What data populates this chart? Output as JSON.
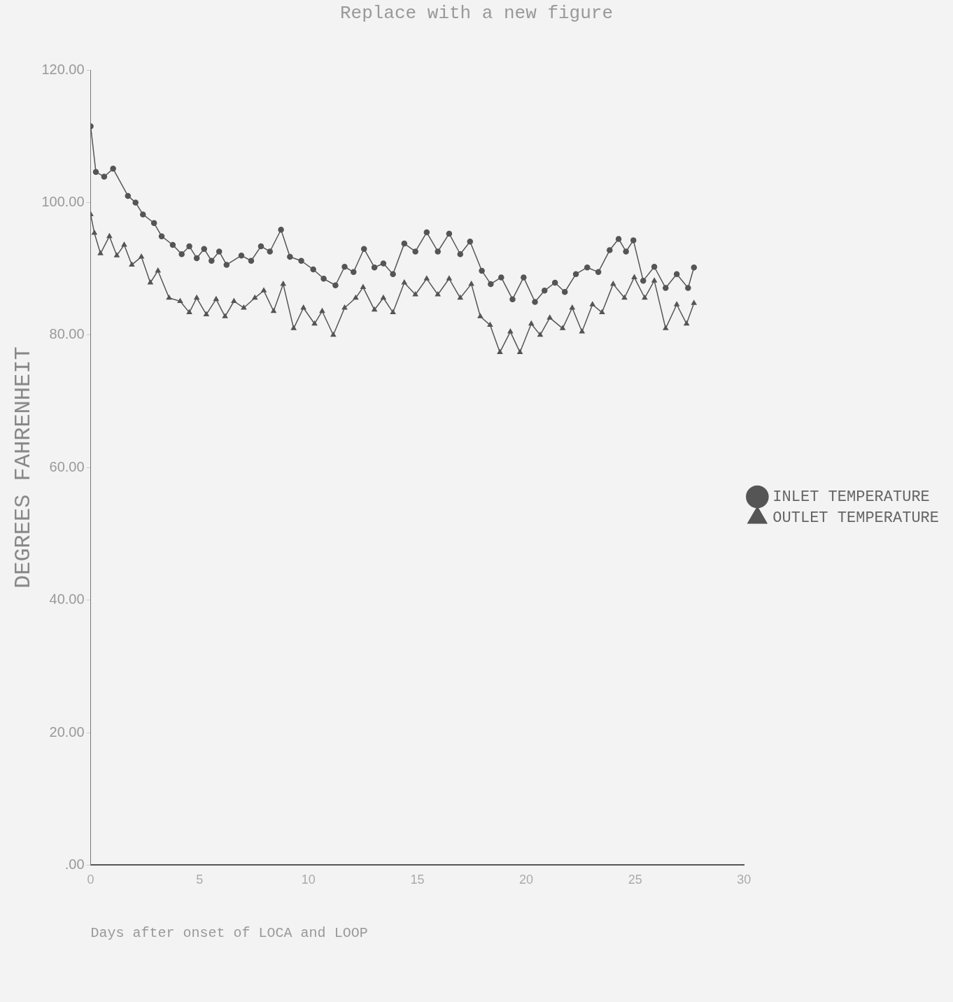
{
  "chart_data": {
    "type": "line",
    "title": "Replace with a new figure",
    "xlabel": "Days after onset of LOCA and LOOP",
    "ylabel": "DEGREES FAHRENHEIT",
    "xlim": [
      0,
      30
    ],
    "xticks": [
      0,
      5,
      10,
      15,
      20,
      25,
      30
    ],
    "ylim": [
      0,
      120
    ],
    "yticks": [
      {
        "value": 0,
        "label": ".00"
      },
      {
        "value": 20,
        "label": "20.00"
      },
      {
        "value": 40,
        "label": "40.00"
      },
      {
        "value": 60,
        "label": "60.00"
      },
      {
        "value": 80,
        "label": "80.00"
      },
      {
        "value": 100,
        "label": "100.00"
      },
      {
        "value": 120,
        "label": "120.00"
      }
    ],
    "grid": false,
    "legend": "right",
    "line_style": "solid",
    "series": [
      {
        "name": "INLET TEMPERATURE",
        "color": "#555555",
        "marker": "circle",
        "x": [
          0,
          0.24,
          0.62,
          1.03,
          1.71,
          2.06,
          2.4,
          2.91,
          3.26,
          3.77,
          4.18,
          4.53,
          4.87,
          5.21,
          5.55,
          5.9,
          6.24,
          6.92,
          7.37,
          7.82,
          8.23,
          8.74,
          9.15,
          9.67,
          10.22,
          10.7,
          11.24,
          11.66,
          12.07,
          12.55,
          13.03,
          13.44,
          13.88,
          14.4,
          14.91,
          15.43,
          15.94,
          16.46,
          16.97,
          17.42,
          17.96,
          18.37,
          18.85,
          19.37,
          19.88,
          20.4,
          20.84,
          21.32,
          21.77,
          22.28,
          22.8,
          23.31,
          23.83,
          24.24,
          24.58,
          24.92,
          25.37,
          25.88,
          26.4,
          26.91,
          27.43,
          27.7
        ],
        "values": [
          111.5,
          104.6,
          103.9,
          105.1,
          101.0,
          100.0,
          98.2,
          96.9,
          94.9,
          93.6,
          92.2,
          93.4,
          91.6,
          93.0,
          91.2,
          92.6,
          90.6,
          92.0,
          91.2,
          93.4,
          92.6,
          95.9,
          91.8,
          91.2,
          89.9,
          88.5,
          87.5,
          90.3,
          89.5,
          93.0,
          90.2,
          90.8,
          89.2,
          93.8,
          92.6,
          95.5,
          92.6,
          95.3,
          92.2,
          94.1,
          89.7,
          87.7,
          88.7,
          85.4,
          88.7,
          85.0,
          86.7,
          87.9,
          86.5,
          89.2,
          90.2,
          89.5,
          92.8,
          94.5,
          92.6,
          94.3,
          88.2,
          90.3,
          87.1,
          89.2,
          87.1,
          90.2
        ]
      },
      {
        "name": "OUTLET TEMPERATURE",
        "color": "#555555",
        "marker": "triangle",
        "x": [
          0,
          0.17,
          0.45,
          0.86,
          1.2,
          1.54,
          1.89,
          2.33,
          2.74,
          3.09,
          3.6,
          4.11,
          4.53,
          4.87,
          5.31,
          5.76,
          6.17,
          6.58,
          7.03,
          7.54,
          7.95,
          8.4,
          8.84,
          9.32,
          9.77,
          10.28,
          10.63,
          11.14,
          11.66,
          12.17,
          12.51,
          13.03,
          13.44,
          13.88,
          14.4,
          14.91,
          15.43,
          15.94,
          16.46,
          16.97,
          17.48,
          17.89,
          18.34,
          18.79,
          19.27,
          19.71,
          20.23,
          20.64,
          21.08,
          21.67,
          22.11,
          22.56,
          23.04,
          23.48,
          23.99,
          24.51,
          24.96,
          25.44,
          25.88,
          26.4,
          26.91,
          27.36,
          27.7
        ],
        "values": [
          98.2,
          95.4,
          92.3,
          94.9,
          92.0,
          93.6,
          90.6,
          91.8,
          87.9,
          89.7,
          85.6,
          85.1,
          83.4,
          85.6,
          83.1,
          85.4,
          82.8,
          85.1,
          84.1,
          85.6,
          86.7,
          83.6,
          87.7,
          81.0,
          84.1,
          81.7,
          83.6,
          80.0,
          84.1,
          85.6,
          87.2,
          83.8,
          85.6,
          83.4,
          87.9,
          86.1,
          88.5,
          86.1,
          88.5,
          85.6,
          87.7,
          82.8,
          81.5,
          77.4,
          80.5,
          77.4,
          81.7,
          80.0,
          82.6,
          81.0,
          84.1,
          80.5,
          84.6,
          83.4,
          87.7,
          85.6,
          88.7,
          85.6,
          88.2,
          81.0,
          84.6,
          81.7,
          84.8
        ]
      }
    ]
  }
}
